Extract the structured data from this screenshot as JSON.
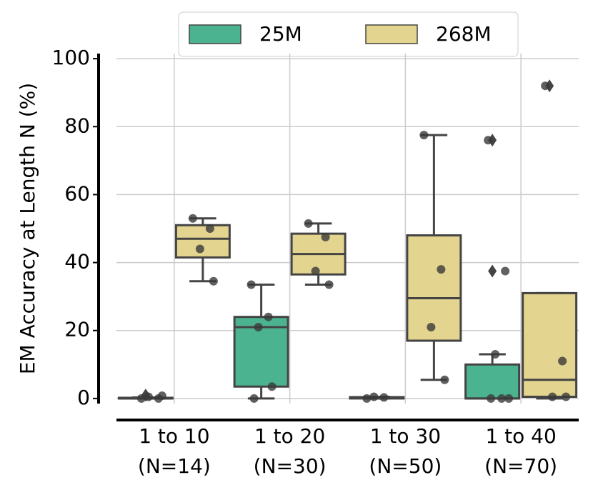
{
  "chart_data": {
    "type": "box",
    "ylabel": "EM Accuracy at Length N (%)",
    "categories": [
      "1 to 10",
      "1 to 20",
      "1 to 30",
      "1 to 40"
    ],
    "category_sublabels": [
      "(N=14)",
      "(N=30)",
      "(N=50)",
      "(N=70)"
    ],
    "ylim": [
      -1.5,
      101.5
    ],
    "yticks": [
      0,
      20,
      40,
      60,
      80,
      100
    ],
    "grid": true,
    "legend": "top",
    "series": [
      {
        "name": "25M",
        "color": "#4cb391",
        "boxes": [
          {
            "min": 0,
            "q1": 0,
            "median": 0,
            "q3": 0.2,
            "max": 0.3,
            "fliers": [
              1
            ],
            "points": [
              0,
              0,
              0.5,
              0.8
            ]
          },
          {
            "min": 0,
            "q1": 3.5,
            "median": 21,
            "q3": 24,
            "max": 33.5,
            "fliers": [],
            "points": [
              33.5,
              24,
              21,
              3.5,
              0
            ]
          },
          {
            "min": 0,
            "q1": 0,
            "median": 0.2,
            "q3": 0.4,
            "max": 0.5,
            "fliers": [],
            "points": [
              0,
              0.3,
              0.5
            ]
          },
          {
            "min": 0,
            "q1": 0,
            "median": 0,
            "q3": 10,
            "max": 13,
            "fliers": [
              76,
              37.5
            ],
            "points": [
              76,
              37.5,
              13,
              0,
              0,
              0
            ]
          }
        ]
      },
      {
        "name": "268M",
        "color": "#e3d48f",
        "boxes": [
          {
            "min": 34.5,
            "q1": 41.5,
            "median": 47,
            "q3": 51,
            "max": 53,
            "fliers": [],
            "points": [
              53,
              50,
              44,
              34.5
            ]
          },
          {
            "min": 33.5,
            "q1": 36.5,
            "median": 42.5,
            "q3": 48.5,
            "max": 51.5,
            "fliers": [],
            "points": [
              51.5,
              47.5,
              37.5,
              33.5
            ]
          },
          {
            "min": 5.5,
            "q1": 17,
            "median": 29.5,
            "q3": 48,
            "max": 77.5,
            "fliers": [],
            "points": [
              77.5,
              38,
              21,
              5.5
            ]
          },
          {
            "min": 0,
            "q1": 0.5,
            "median": 5.5,
            "q3": 31,
            "max": 31,
            "fliers": [
              92
            ],
            "points": [
              92,
              11,
              0.5,
              0.5
            ]
          }
        ]
      }
    ]
  }
}
